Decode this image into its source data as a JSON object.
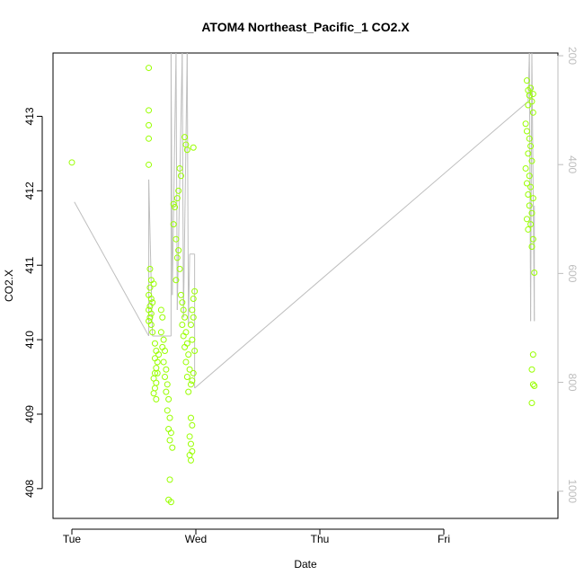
{
  "chart_data": {
    "type": "scatter",
    "title": "ATOM4 Northeast_Pacific_1 CO2.X",
    "xlabel": "Date",
    "ylabel": "CO2.X",
    "x_range": [
      -0.1,
      3.95
    ],
    "ylim": [
      407.6,
      413.85
    ],
    "y2lim": [
      1050,
      195
    ],
    "x_ticks": [
      {
        "value": 0,
        "label": "Tue"
      },
      {
        "value": 1,
        "label": "Wed"
      },
      {
        "value": 2,
        "label": "Thu"
      },
      {
        "value": 3,
        "label": "Fri"
      }
    ],
    "y_ticks": [
      408,
      409,
      410,
      411,
      412,
      413
    ],
    "y2_ticks": [
      200,
      400,
      600,
      800,
      1000
    ],
    "colors": {
      "points": "#99ff00",
      "line": "#bebebe",
      "axis": "#000000",
      "right_axis": "#bdbdbd"
    },
    "series": [
      {
        "marker": "open-circle",
        "points": [
          [
            0.0,
            412.38
          ],
          [
            0.62,
            413.65
          ],
          [
            0.62,
            413.08
          ],
          [
            0.62,
            412.88
          ],
          [
            0.62,
            412.7
          ],
          [
            0.62,
            412.35
          ],
          [
            0.63,
            410.95
          ],
          [
            0.63,
            410.7
          ],
          [
            0.62,
            410.6
          ],
          [
            0.64,
            410.55
          ],
          [
            0.63,
            410.45
          ],
          [
            0.62,
            410.4
          ],
          [
            0.64,
            410.35
          ],
          [
            0.63,
            410.3
          ],
          [
            0.62,
            410.25
          ],
          [
            0.64,
            410.2
          ],
          [
            0.65,
            410.5
          ],
          [
            0.66,
            410.75
          ],
          [
            0.64,
            410.8
          ],
          [
            0.65,
            410.1
          ],
          [
            0.67,
            409.95
          ],
          [
            0.68,
            409.85
          ],
          [
            0.67,
            409.75
          ],
          [
            0.69,
            409.7
          ],
          [
            0.68,
            409.62
          ],
          [
            0.67,
            409.55
          ],
          [
            0.66,
            409.48
          ],
          [
            0.68,
            409.42
          ],
          [
            0.67,
            409.35
          ],
          [
            0.66,
            409.28
          ],
          [
            0.68,
            409.2
          ],
          [
            0.69,
            409.55
          ],
          [
            0.7,
            409.8
          ],
          [
            0.72,
            410.1
          ],
          [
            0.73,
            410.3
          ],
          [
            0.72,
            410.4
          ],
          [
            0.74,
            410.0
          ],
          [
            0.73,
            409.9
          ],
          [
            0.75,
            409.85
          ],
          [
            0.74,
            409.7
          ],
          [
            0.76,
            409.6
          ],
          [
            0.75,
            409.5
          ],
          [
            0.77,
            409.4
          ],
          [
            0.76,
            409.3
          ],
          [
            0.78,
            409.2
          ],
          [
            0.77,
            409.05
          ],
          [
            0.79,
            408.95
          ],
          [
            0.78,
            408.8
          ],
          [
            0.8,
            408.75
          ],
          [
            0.79,
            408.65
          ],
          [
            0.81,
            408.55
          ],
          [
            0.79,
            408.12
          ],
          [
            0.78,
            407.85
          ],
          [
            0.8,
            407.82
          ],
          [
            0.82,
            411.82
          ],
          [
            0.83,
            411.78
          ],
          [
            0.82,
            411.55
          ],
          [
            0.84,
            411.35
          ],
          [
            0.86,
            412.0
          ],
          [
            0.85,
            411.9
          ],
          [
            0.87,
            412.3
          ],
          [
            0.88,
            412.2
          ],
          [
            0.86,
            411.2
          ],
          [
            0.85,
            411.1
          ],
          [
            0.87,
            410.95
          ],
          [
            0.84,
            410.8
          ],
          [
            0.88,
            410.6
          ],
          [
            0.89,
            410.5
          ],
          [
            0.9,
            410.4
          ],
          [
            0.91,
            410.3
          ],
          [
            0.89,
            410.2
          ],
          [
            0.92,
            410.1
          ],
          [
            0.9,
            410.05
          ],
          [
            0.93,
            409.95
          ],
          [
            0.91,
            409.9
          ],
          [
            0.94,
            409.8
          ],
          [
            0.92,
            409.7
          ],
          [
            0.95,
            409.6
          ],
          [
            0.93,
            409.5
          ],
          [
            0.96,
            409.4
          ],
          [
            0.94,
            409.3
          ],
          [
            0.91,
            412.72
          ],
          [
            0.92,
            412.62
          ],
          [
            0.93,
            412.55
          ],
          [
            0.98,
            412.58
          ],
          [
            0.96,
            410.2
          ],
          [
            0.97,
            410.4
          ],
          [
            0.98,
            410.55
          ],
          [
            0.99,
            410.65
          ],
          [
            0.98,
            410.3
          ],
          [
            0.97,
            410.0
          ],
          [
            0.99,
            409.85
          ],
          [
            0.98,
            409.55
          ],
          [
            0.97,
            409.45
          ],
          [
            0.96,
            408.95
          ],
          [
            0.97,
            408.85
          ],
          [
            0.95,
            408.7
          ],
          [
            0.96,
            408.6
          ],
          [
            0.97,
            408.5
          ],
          [
            0.95,
            408.45
          ],
          [
            0.96,
            408.38
          ],
          [
            3.67,
            413.48
          ],
          [
            3.68,
            413.35
          ],
          [
            3.7,
            413.38
          ],
          [
            3.72,
            413.3
          ],
          [
            3.69,
            413.28
          ],
          [
            3.71,
            413.2
          ],
          [
            3.68,
            413.15
          ],
          [
            3.72,
            413.05
          ],
          [
            3.66,
            412.9
          ],
          [
            3.67,
            412.8
          ],
          [
            3.69,
            412.7
          ],
          [
            3.7,
            412.6
          ],
          [
            3.68,
            412.5
          ],
          [
            3.71,
            412.4
          ],
          [
            3.66,
            412.3
          ],
          [
            3.69,
            412.2
          ],
          [
            3.67,
            412.1
          ],
          [
            3.7,
            412.05
          ],
          [
            3.68,
            411.95
          ],
          [
            3.72,
            411.9
          ],
          [
            3.69,
            411.8
          ],
          [
            3.71,
            411.7
          ],
          [
            3.67,
            411.62
          ],
          [
            3.7,
            411.55
          ],
          [
            3.68,
            411.48
          ],
          [
            3.72,
            411.35
          ],
          [
            3.71,
            411.25
          ],
          [
            3.73,
            410.9
          ],
          [
            3.72,
            409.8
          ],
          [
            3.71,
            409.6
          ],
          [
            3.72,
            409.4
          ],
          [
            3.73,
            409.38
          ],
          [
            3.71,
            409.15
          ]
        ]
      },
      {
        "style": "line",
        "points": [
          [
            0.02,
            411.85
          ],
          [
            0.62,
            410.05
          ],
          [
            0.62,
            412.15
          ],
          [
            0.65,
            410.05
          ],
          [
            0.8,
            410.05
          ],
          [
            0.8,
            413.9
          ],
          [
            0.81,
            410.6
          ],
          [
            0.84,
            413.9
          ],
          [
            0.85,
            410.4
          ],
          [
            0.89,
            413.9
          ],
          [
            0.9,
            410.3
          ],
          [
            0.93,
            413.9
          ],
          [
            0.94,
            410.2
          ],
          [
            0.95,
            411.15
          ],
          [
            0.99,
            411.15
          ],
          [
            0.99,
            409.35
          ],
          [
            3.68,
            413.2
          ],
          [
            3.69,
            413.9
          ],
          [
            3.7,
            410.25
          ],
          [
            3.71,
            413.9
          ],
          [
            3.73,
            410.25
          ],
          [
            3.73,
            411.8
          ]
        ]
      }
    ]
  }
}
